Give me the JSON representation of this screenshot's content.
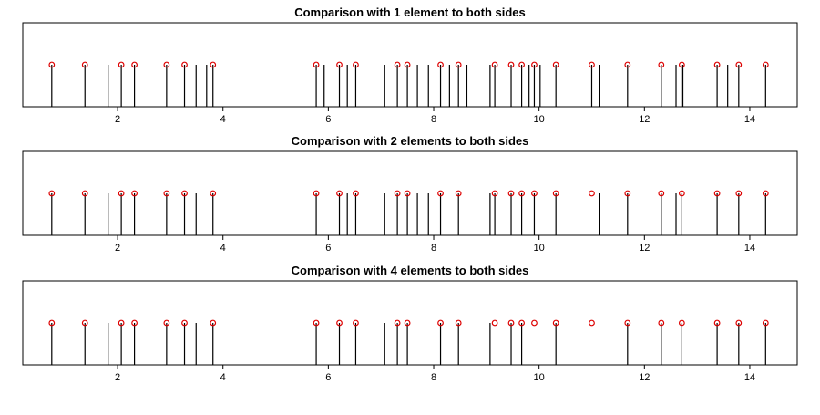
{
  "chart_data": [
    {
      "type": "spike",
      "title": "Comparison with 1 element to both sides",
      "xlim": [
        0.2,
        14.9
      ],
      "x_ticks": [
        2,
        4,
        6,
        8,
        10,
        12,
        14
      ],
      "x_tick_labels": [
        "2",
        "4",
        "6",
        "8",
        "10",
        "12",
        "14"
      ],
      "series": [
        {
          "x": [
            0.75,
            1.38,
            1.82,
            2.07,
            2.32,
            2.93,
            3.27,
            3.49,
            3.69,
            3.81,
            5.77,
            5.92,
            6.21,
            6.36,
            6.52,
            7.07,
            7.31,
            7.5,
            7.69,
            7.9,
            8.13,
            8.3,
            8.47,
            8.63,
            9.07,
            9.16,
            9.47,
            9.67,
            9.81,
            9.91,
            10.02,
            10.32,
            11.0,
            11.14,
            11.68,
            12.32,
            12.6,
            12.71,
            12.73,
            13.38,
            13.58,
            13.79,
            14.3
          ]
        },
        {
          "x": [
            0.75,
            1.38,
            2.07,
            2.32,
            2.93,
            3.27,
            3.81,
            5.77,
            6.21,
            6.52,
            7.31,
            7.5,
            8.13,
            8.47,
            9.16,
            9.47,
            9.67,
            9.91,
            10.32,
            11.0,
            11.68,
            12.32,
            12.71,
            13.38,
            13.79,
            14.3
          ]
        }
      ]
    },
    {
      "type": "spike",
      "title": "Comparison with 2 elements to both sides",
      "xlim": [
        0.2,
        14.9
      ],
      "x_ticks": [
        2,
        4,
        6,
        8,
        10,
        12,
        14
      ],
      "x_tick_labels": [
        "2",
        "4",
        "6",
        "8",
        "10",
        "12",
        "14"
      ],
      "series": [
        {
          "x": [
            0.75,
            1.38,
            1.82,
            2.07,
            2.32,
            2.93,
            3.27,
            3.49,
            3.81,
            5.77,
            6.21,
            6.36,
            6.52,
            7.07,
            7.31,
            7.5,
            7.69,
            7.9,
            8.13,
            8.47,
            9.07,
            9.16,
            9.47,
            9.67,
            9.91,
            10.32,
            11.14,
            11.68,
            12.32,
            12.6,
            12.71,
            13.38,
            13.79,
            14.3
          ]
        },
        {
          "x": [
            0.75,
            1.38,
            2.07,
            2.32,
            2.93,
            3.27,
            3.81,
            5.77,
            6.21,
            6.52,
            7.31,
            7.5,
            8.13,
            8.47,
            9.16,
            9.47,
            9.67,
            9.91,
            10.32,
            11.0,
            11.68,
            12.32,
            12.71,
            13.38,
            13.79,
            14.3
          ]
        }
      ]
    },
    {
      "type": "spike",
      "title": "Comparison with 4 elements to both sides",
      "xlim": [
        0.2,
        14.9
      ],
      "x_ticks": [
        2,
        4,
        6,
        8,
        10,
        12,
        14
      ],
      "x_tick_labels": [
        "2",
        "4",
        "6",
        "8",
        "10",
        "12",
        "14"
      ],
      "series": [
        {
          "x": [
            0.75,
            1.38,
            1.82,
            2.07,
            2.32,
            2.93,
            3.27,
            3.49,
            3.81,
            5.77,
            6.21,
            6.52,
            7.07,
            7.31,
            7.5,
            8.13,
            8.47,
            9.07,
            9.47,
            9.67,
            10.32,
            11.68,
            12.32,
            12.71,
            13.38,
            13.79,
            14.3
          ]
        },
        {
          "x": [
            0.75,
            1.38,
            2.07,
            2.32,
            2.93,
            3.27,
            3.81,
            5.77,
            6.21,
            6.52,
            7.31,
            7.5,
            8.13,
            8.47,
            9.16,
            9.47,
            9.67,
            9.91,
            10.32,
            11.0,
            11.68,
            12.32,
            12.71,
            13.38,
            13.79,
            14.3
          ]
        }
      ]
    }
  ],
  "colors": {
    "spike": "#000000",
    "marker": "#dd0000",
    "axis": "#000000"
  }
}
